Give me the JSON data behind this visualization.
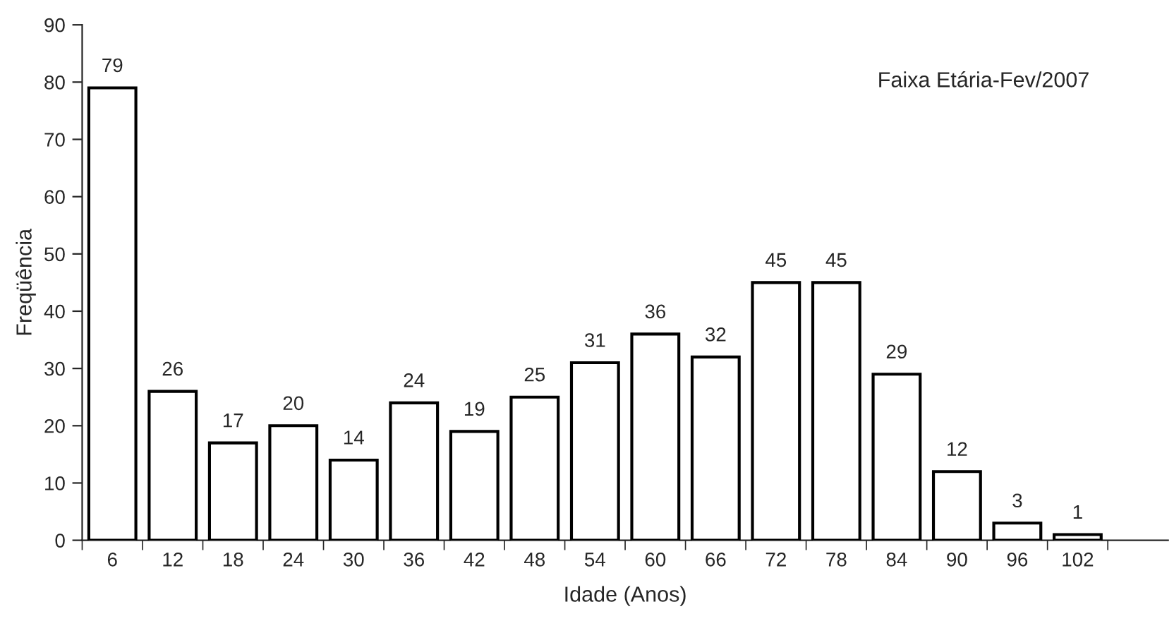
{
  "chart_data": {
    "type": "bar",
    "title": "Faixa Etária-Fev/2007",
    "xlabel": "Idade (Anos)",
    "ylabel": "Freqüência",
    "categories": [
      "6",
      "12",
      "18",
      "24",
      "30",
      "36",
      "42",
      "48",
      "54",
      "60",
      "66",
      "72",
      "78",
      "84",
      "90",
      "96",
      "102",
      null
    ],
    "values": [
      79,
      26,
      17,
      20,
      14,
      24,
      19,
      25,
      31,
      36,
      32,
      45,
      45,
      29,
      12,
      3,
      1,
      null
    ],
    "color": "#ffffff",
    "ylim": [
      0,
      90
    ],
    "yticks": [
      0,
      10,
      20,
      30,
      40,
      50,
      60,
      70,
      80,
      90
    ],
    "data_labels": true,
    "grid": false,
    "legend": false
  }
}
